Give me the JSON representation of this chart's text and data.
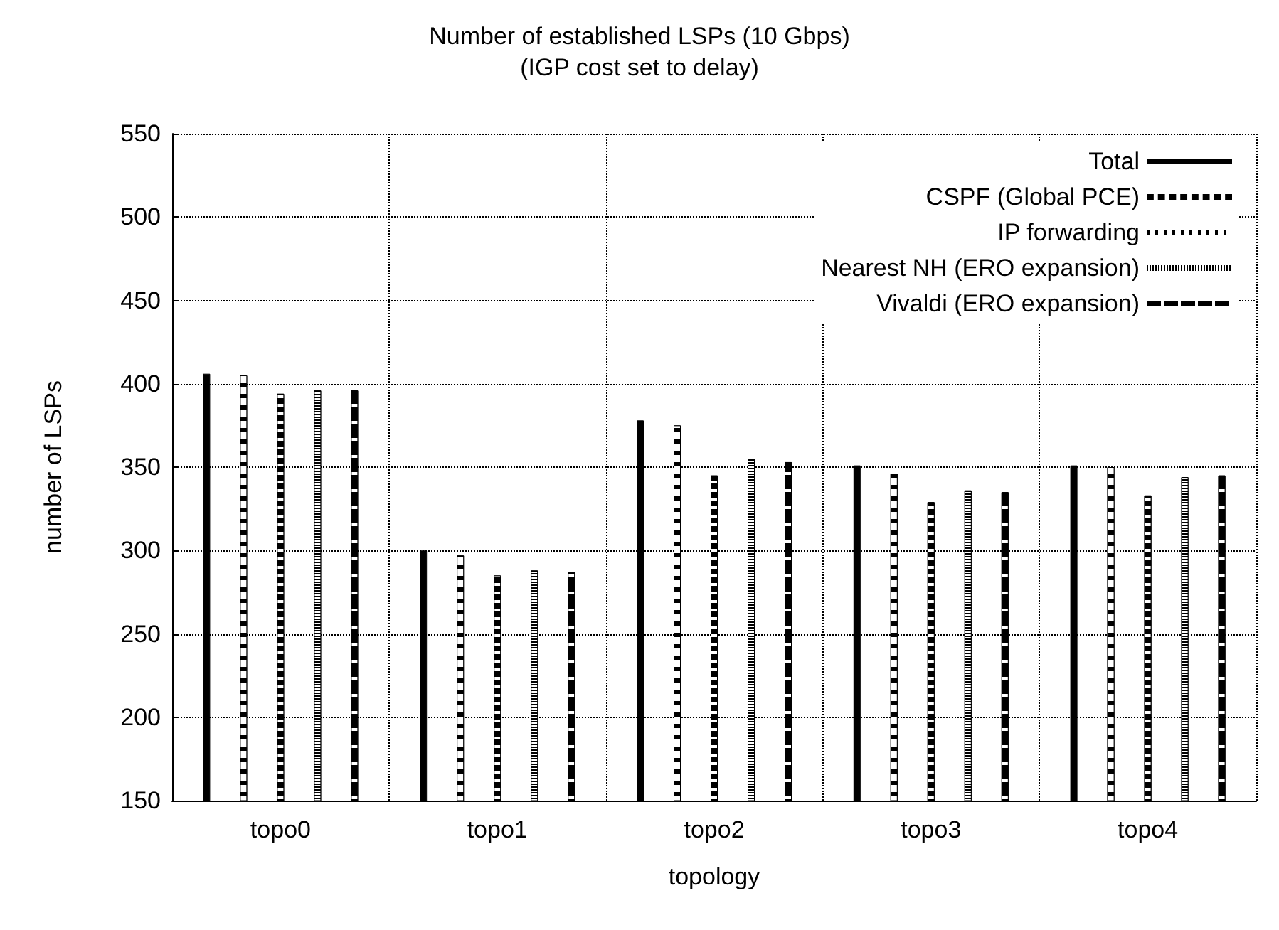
{
  "chart_data": {
    "type": "bar",
    "title": "Number of established LSPs (10 Gbps)",
    "subtitle": "(IGP cost set to delay)",
    "xlabel": "topology",
    "ylabel": "number of LSPs",
    "categories": [
      "topo0",
      "topo1",
      "topo2",
      "topo3",
      "topo4"
    ],
    "series": [
      {
        "name": "Total",
        "color": "#000000",
        "values": [
          406,
          300,
          378,
          351,
          351
        ]
      },
      {
        "name": "CSPF (Global PCE)",
        "color": "#000000",
        "values": [
          405,
          297,
          375,
          346,
          350
        ]
      },
      {
        "name": "IP forwarding",
        "color": "#000000",
        "values": [
          394,
          285,
          345,
          329,
          333
        ]
      },
      {
        "name": "Nearest NH (ERO expansion)",
        "color": "#000000",
        "values": [
          396,
          288,
          355,
          336,
          344
        ]
      },
      {
        "name": "Vivaldi (ERO expansion)",
        "color": "#000000",
        "values": [
          396,
          287,
          353,
          335,
          345
        ]
      }
    ],
    "ylim": [
      150,
      550
    ],
    "yticks": [
      150,
      200,
      250,
      300,
      350,
      400,
      450,
      500,
      550
    ],
    "grid": true,
    "legend": "top right"
  }
}
